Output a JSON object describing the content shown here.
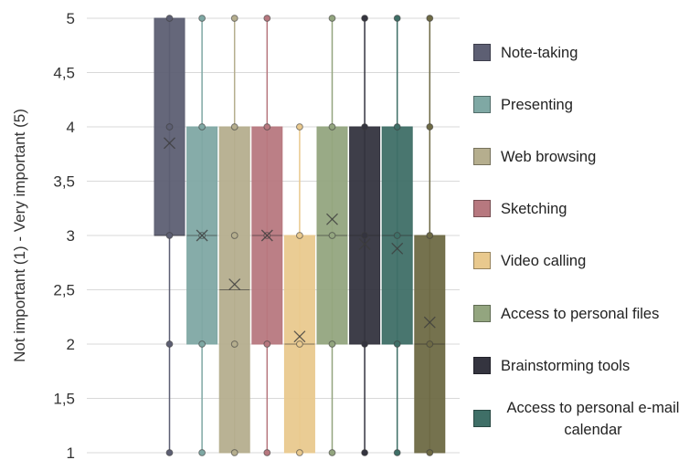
{
  "chart_data": {
    "type": "box",
    "title": "",
    "xlabel": "",
    "ylabel": "Not important (1) - Very important (5)",
    "ylim": [
      1,
      5
    ],
    "yticks": [
      "1",
      "1,5",
      "2",
      "2,5",
      "3",
      "3,5",
      "4",
      "4,5",
      "5"
    ],
    "grid": true,
    "legend_position": "right",
    "series": [
      {
        "name": "Note-taking",
        "color": "#5d5f73",
        "min": 1,
        "q1": 3,
        "median": 3,
        "q3": 5,
        "max": 5,
        "mean": 3.85,
        "points": [
          1,
          2,
          3,
          4,
          5
        ]
      },
      {
        "name": "Presenting",
        "color": "#7fa8a4",
        "min": 1,
        "q1": 2,
        "median": 3,
        "q3": 4,
        "max": 5,
        "mean": 3.0,
        "points": [
          1,
          2,
          3,
          4,
          5
        ]
      },
      {
        "name": "Web browsing",
        "color": "#b5ae8e",
        "min": 1,
        "q1": 1,
        "median": 2.5,
        "q3": 4,
        "max": 5,
        "mean": 2.55,
        "points": [
          1,
          2,
          3,
          4,
          5
        ]
      },
      {
        "name": "Sketching",
        "color": "#b7787f",
        "min": 1,
        "q1": 2,
        "median": 3,
        "q3": 4,
        "max": 5,
        "mean": 3.0,
        "points": [
          1,
          2,
          3,
          4,
          5
        ]
      },
      {
        "name": "Video calling",
        "color": "#e9c98e",
        "min": 1,
        "q1": 1,
        "median": 2,
        "q3": 3,
        "max": 4,
        "mean": 2.07,
        "points": [
          1,
          2,
          3,
          4
        ]
      },
      {
        "name": "Access to personal files",
        "color": "#93a57f",
        "min": 1,
        "q1": 2,
        "median": 3,
        "q3": 4,
        "max": 5,
        "mean": 3.15,
        "points": [
          1,
          2,
          3,
          4,
          5
        ]
      },
      {
        "name": "Brainstorming tools",
        "color": "#34343f",
        "min": 1,
        "q1": 2,
        "median": 3,
        "q3": 4,
        "max": 5,
        "mean": 2.92,
        "points": [
          1,
          2,
          3,
          4,
          5
        ]
      },
      {
        "name": "Access to personal e-mail calendar",
        "color": "#3f6f67",
        "min": 1,
        "q1": 2,
        "median": 3,
        "q3": 4,
        "max": 5,
        "mean": 2.88,
        "points": [
          1,
          2,
          3,
          4,
          5
        ]
      },
      {
        "name": "",
        "color": "#6e6a45",
        "min": 1,
        "q1": 1,
        "median": 2,
        "q3": 3,
        "max": 5,
        "mean": 2.2,
        "points": [
          1,
          2,
          3,
          4,
          5
        ]
      }
    ]
  },
  "legend": {
    "items": [
      {
        "label": "Note-taking",
        "color": "#5d5f73"
      },
      {
        "label": "Presenting",
        "color": "#7fa8a4"
      },
      {
        "label": "Web browsing",
        "color": "#b5ae8e"
      },
      {
        "label": "Sketching",
        "color": "#b7787f"
      },
      {
        "label": "Video calling",
        "color": "#e9c98e"
      },
      {
        "label": "Access to personal files",
        "color": "#93a57f"
      },
      {
        "label": "Brainstorming tools",
        "color": "#34343f"
      },
      {
        "label": "Access to personal e-mail calendar",
        "color": "#3f6f67"
      }
    ]
  }
}
